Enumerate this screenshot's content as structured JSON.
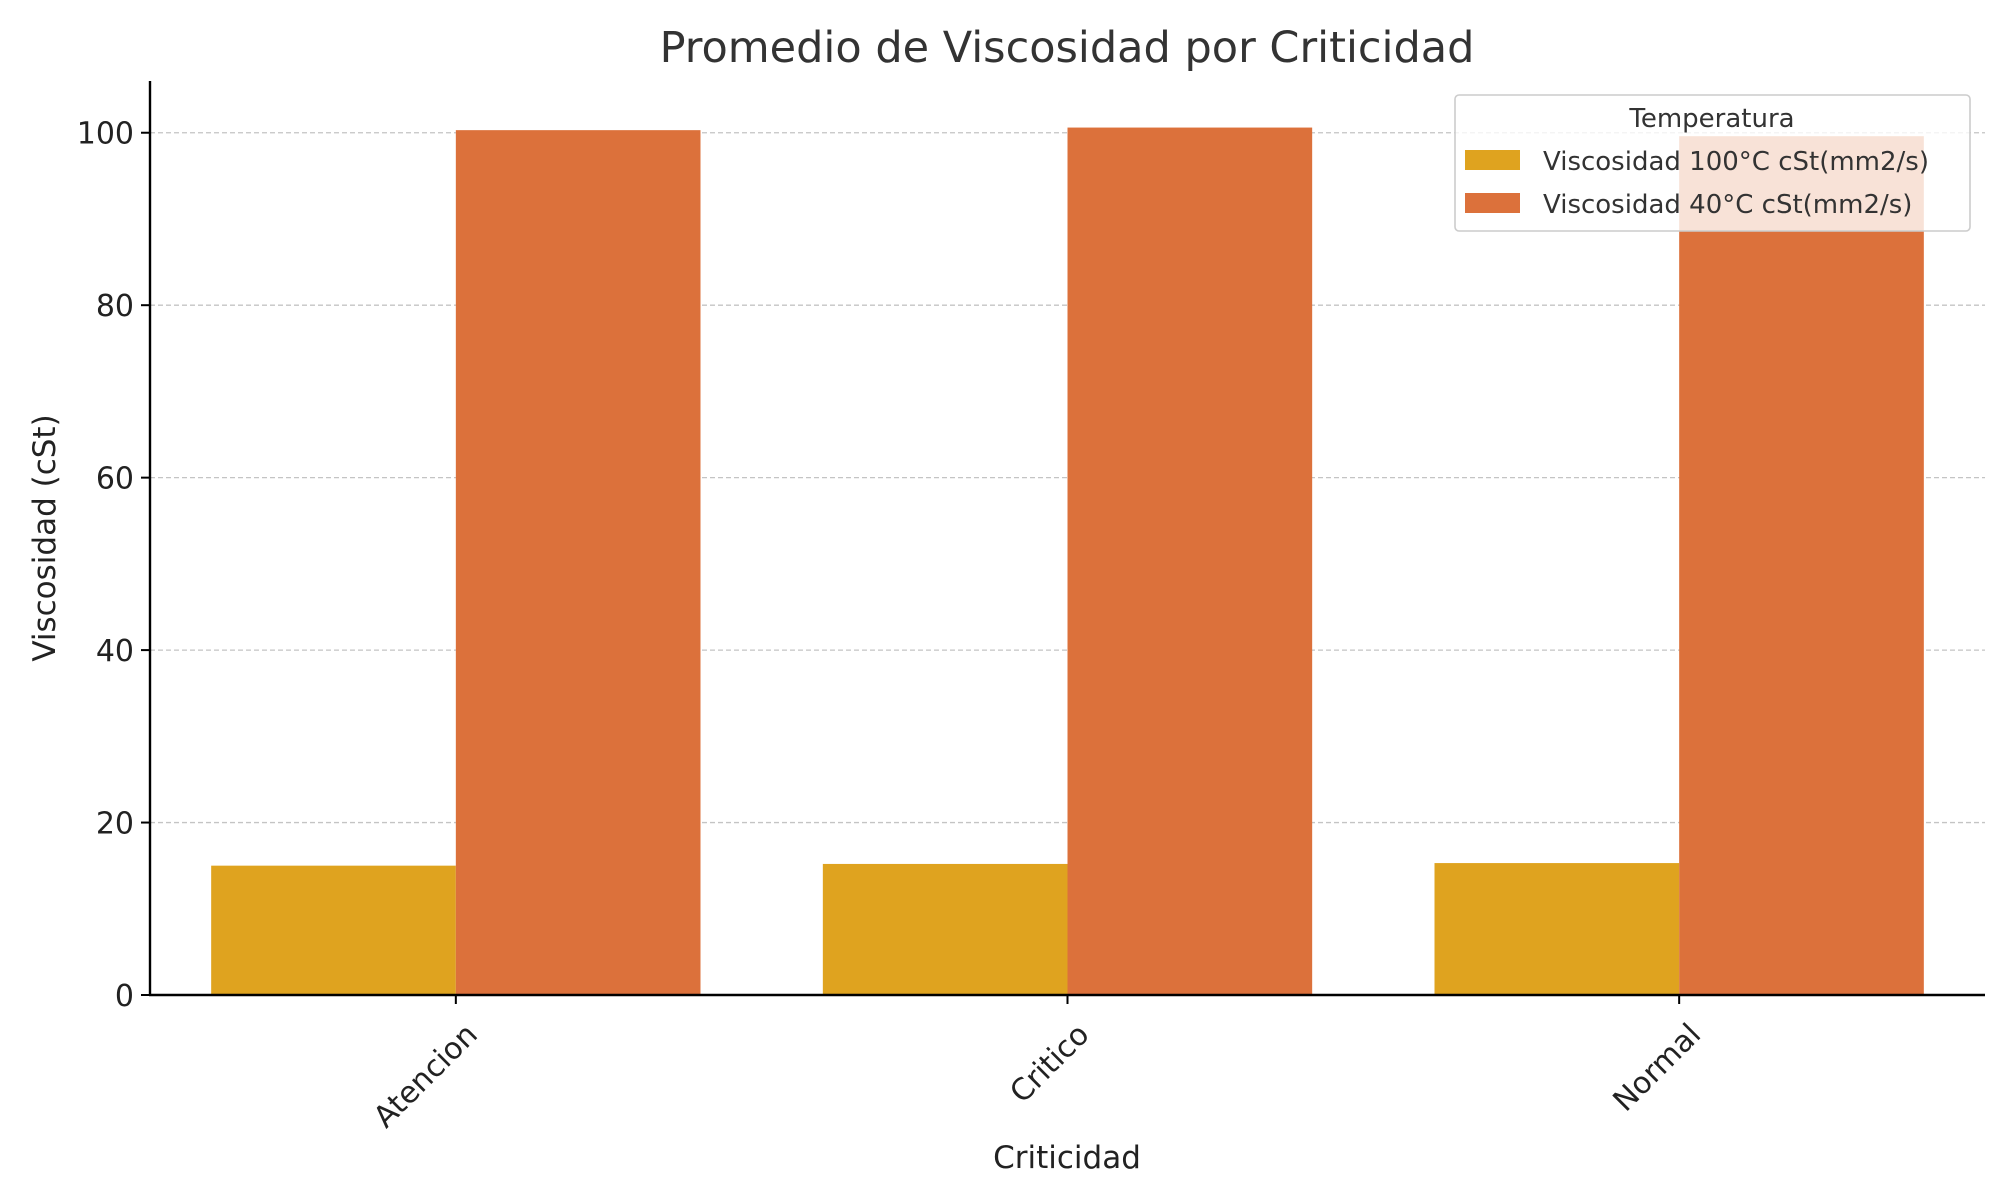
{
  "chart_data": {
    "type": "bar",
    "title": "Promedio de Viscosidad por Criticidad",
    "xlabel": "Criticidad",
    "ylabel": "Viscosidad (cSt)",
    "categories": [
      "Atencion",
      "Critico",
      "Normal"
    ],
    "series": [
      {
        "name": "Viscosidad 100°C cSt(mm2/s)",
        "values": [
          15.0,
          15.2,
          15.3
        ],
        "color": "#DFA31F"
      },
      {
        "name": "Viscosidad 40°C cSt(mm2/s)",
        "values": [
          100.3,
          100.6,
          99.6
        ],
        "color": "#DC713B"
      }
    ],
    "ylim": [
      0,
      106
    ],
    "yticks": [
      0,
      20,
      40,
      60,
      80,
      100
    ],
    "grid": "y-dashed",
    "legend": {
      "title": "Temperatura",
      "position": "top-right"
    }
  }
}
